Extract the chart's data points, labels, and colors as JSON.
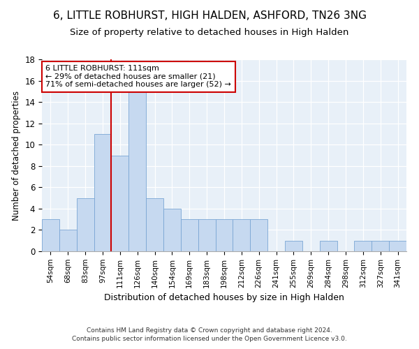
{
  "title": "6, LITTLE ROBHURST, HIGH HALDEN, ASHFORD, TN26 3NG",
  "subtitle": "Size of property relative to detached houses in High Halden",
  "xlabel": "Distribution of detached houses by size in High Halden",
  "ylabel": "Number of detached properties",
  "bin_labels": [
    "54sqm",
    "68sqm",
    "83sqm",
    "97sqm",
    "111sqm",
    "126sqm",
    "140sqm",
    "154sqm",
    "169sqm",
    "183sqm",
    "198sqm",
    "212sqm",
    "226sqm",
    "241sqm",
    "255sqm",
    "269sqm",
    "284sqm",
    "298sqm",
    "312sqm",
    "327sqm",
    "341sqm"
  ],
  "bar_heights": [
    3,
    2,
    5,
    11,
    9,
    15,
    5,
    4,
    3,
    3,
    3,
    3,
    3,
    0,
    1,
    0,
    1,
    0,
    1,
    1,
    1
  ],
  "bar_color": "#c6d9f0",
  "bar_edge_color": "#7aa6d4",
  "vline_x_index": 4,
  "vline_color": "#cc0000",
  "annotation_line1": "6 LITTLE ROBHURST: 111sqm",
  "annotation_line2": "← 29% of detached houses are smaller (21)",
  "annotation_line3": "71% of semi-detached houses are larger (52) →",
  "annotation_box_edge": "#cc0000",
  "ylim": [
    0,
    18
  ],
  "yticks": [
    0,
    2,
    4,
    6,
    8,
    10,
    12,
    14,
    16,
    18
  ],
  "footer1": "Contains HM Land Registry data © Crown copyright and database right 2024.",
  "footer2": "Contains public sector information licensed under the Open Government Licence v3.0.",
  "bg_color": "#e8f0f8",
  "title_fontsize": 11,
  "subtitle_fontsize": 9.5
}
